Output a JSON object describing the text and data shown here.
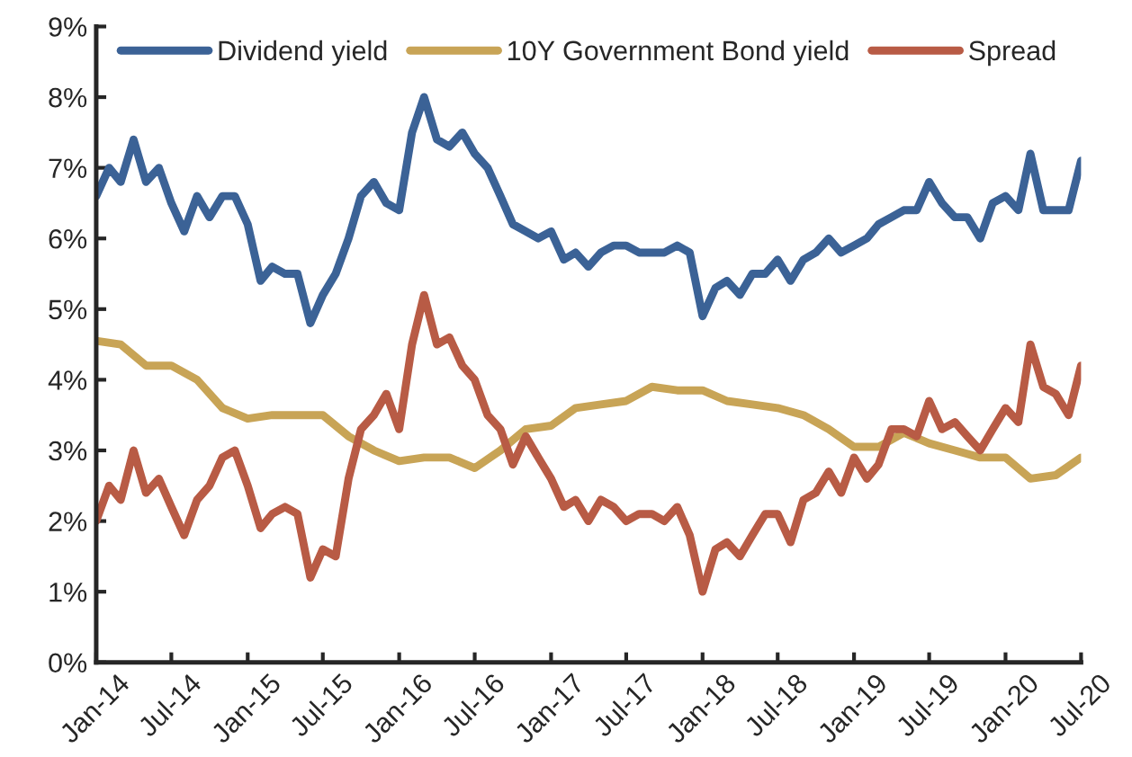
{
  "chart_data": {
    "type": "line",
    "xlim": [
      "2014-01",
      "2020-07"
    ],
    "xticks": [
      {
        "value": "2014-01",
        "label": "Jan-14"
      },
      {
        "value": "2014-07",
        "label": "Jul-14"
      },
      {
        "value": "2015-01",
        "label": "Jan-15"
      },
      {
        "value": "2015-07",
        "label": "Jul-15"
      },
      {
        "value": "2016-01",
        "label": "Jan-16"
      },
      {
        "value": "2016-07",
        "label": "Jul-16"
      },
      {
        "value": "2017-01",
        "label": "Jan-17"
      },
      {
        "value": "2017-07",
        "label": "Jul-17"
      },
      {
        "value": "2018-01",
        "label": "Jan-18"
      },
      {
        "value": "2018-07",
        "label": "Jul-18"
      },
      {
        "value": "2019-01",
        "label": "Jan-19"
      },
      {
        "value": "2019-07",
        "label": "Jul-19"
      },
      {
        "value": "2020-01",
        "label": "Jan-20"
      },
      {
        "value": "2020-07",
        "label": "Jul-20"
      }
    ],
    "ylim": [
      0,
      9
    ],
    "yticks": [
      {
        "value": 0,
        "label": "0%"
      },
      {
        "value": 1,
        "label": "1%"
      },
      {
        "value": 2,
        "label": "2%"
      },
      {
        "value": 3,
        "label": "3%"
      },
      {
        "value": 4,
        "label": "4%"
      },
      {
        "value": 5,
        "label": "5%"
      },
      {
        "value": 6,
        "label": "6%"
      },
      {
        "value": 7,
        "label": "7%"
      },
      {
        "value": 8,
        "label": "8%"
      },
      {
        "value": 9,
        "label": "9%"
      }
    ],
    "grid": false,
    "legend": "top",
    "marker": "none",
    "line_style": "solid",
    "x": [
      "2014-01",
      "2014-02",
      "2014-03",
      "2014-04",
      "2014-05",
      "2014-06",
      "2014-07",
      "2014-08",
      "2014-09",
      "2014-10",
      "2014-11",
      "2014-12",
      "2015-01",
      "2015-02",
      "2015-03",
      "2015-04",
      "2015-05",
      "2015-06",
      "2015-07",
      "2015-08",
      "2015-09",
      "2015-10",
      "2015-11",
      "2015-12",
      "2016-01",
      "2016-02",
      "2016-03",
      "2016-04",
      "2016-05",
      "2016-06",
      "2016-07",
      "2016-08",
      "2016-09",
      "2016-10",
      "2016-11",
      "2016-12",
      "2017-01",
      "2017-02",
      "2017-03",
      "2017-04",
      "2017-05",
      "2017-06",
      "2017-07",
      "2017-08",
      "2017-09",
      "2017-10",
      "2017-11",
      "2017-12",
      "2018-01",
      "2018-02",
      "2018-03",
      "2018-04",
      "2018-05",
      "2018-06",
      "2018-07",
      "2018-08",
      "2018-09",
      "2018-10",
      "2018-11",
      "2018-12",
      "2019-01",
      "2019-02",
      "2019-03",
      "2019-04",
      "2019-05",
      "2019-06",
      "2019-07",
      "2019-08",
      "2019-09",
      "2019-10",
      "2019-11",
      "2019-12",
      "2020-01",
      "2020-02",
      "2020-03",
      "2020-04",
      "2020-05",
      "2020-06",
      "2020-07"
    ],
    "series": [
      {
        "name": "Dividend yield",
        "color": "#3b6296",
        "values": [
          6.6,
          7.0,
          6.8,
          7.4,
          6.8,
          7.0,
          6.5,
          6.1,
          6.6,
          6.3,
          6.6,
          6.6,
          6.2,
          5.4,
          5.6,
          5.5,
          5.5,
          4.8,
          5.2,
          5.5,
          6.0,
          6.6,
          6.8,
          6.5,
          6.4,
          7.5,
          8.0,
          7.4,
          7.3,
          7.5,
          7.2,
          7.0,
          6.6,
          6.2,
          6.1,
          6.0,
          6.1,
          5.7,
          5.8,
          5.6,
          5.8,
          5.9,
          5.9,
          5.8,
          5.8,
          5.8,
          5.9,
          5.8,
          4.9,
          5.3,
          5.4,
          5.2,
          5.5,
          5.5,
          5.7,
          5.4,
          5.7,
          5.8,
          6.0,
          5.8,
          5.9,
          6.0,
          6.2,
          6.3,
          6.4,
          6.4,
          6.8,
          6.5,
          6.3,
          6.3,
          6.0,
          6.5,
          6.6,
          6.4,
          7.2,
          6.4,
          6.4,
          6.4,
          7.1
        ]
      },
      {
        "name": "10Y Government Bond yield",
        "color": "#c8a456",
        "x": [
          "2014-01",
          "2014-03",
          "2014-05",
          "2014-07",
          "2014-09",
          "2014-11",
          "2015-01",
          "2015-03",
          "2015-05",
          "2015-07",
          "2015-09",
          "2015-11",
          "2016-01",
          "2016-03",
          "2016-05",
          "2016-07",
          "2016-09",
          "2016-11",
          "2017-01",
          "2017-03",
          "2017-05",
          "2017-07",
          "2017-09",
          "2017-11",
          "2018-01",
          "2018-03",
          "2018-05",
          "2018-07",
          "2018-09",
          "2018-11",
          "2019-01",
          "2019-03",
          "2019-05",
          "2019-07",
          "2019-09",
          "2019-11",
          "2020-01",
          "2020-03",
          "2020-05",
          "2020-07"
        ],
        "values": [
          4.55,
          4.5,
          4.2,
          4.2,
          4.0,
          3.6,
          3.45,
          3.5,
          3.5,
          3.5,
          3.2,
          3.0,
          2.85,
          2.9,
          2.9,
          2.75,
          3.0,
          3.3,
          3.35,
          3.6,
          3.65,
          3.7,
          3.9,
          3.85,
          3.85,
          3.7,
          3.65,
          3.6,
          3.5,
          3.3,
          3.05,
          3.05,
          3.25,
          3.1,
          3.0,
          2.9,
          2.9,
          2.6,
          2.65,
          2.9
        ]
      },
      {
        "name": "Spread",
        "color": "#b85b45",
        "values": [
          2.0,
          2.5,
          2.3,
          3.0,
          2.4,
          2.6,
          2.2,
          1.8,
          2.3,
          2.5,
          2.9,
          3.0,
          2.5,
          1.9,
          2.1,
          2.2,
          2.1,
          1.2,
          1.6,
          1.5,
          2.6,
          3.3,
          3.5,
          3.8,
          3.3,
          4.5,
          5.2,
          4.5,
          4.6,
          4.2,
          4.0,
          3.5,
          3.3,
          2.8,
          3.2,
          2.9,
          2.6,
          2.2,
          2.3,
          2.0,
          2.3,
          2.2,
          2.0,
          2.1,
          2.1,
          2.0,
          2.2,
          1.8,
          1.0,
          1.6,
          1.7,
          1.5,
          1.8,
          2.1,
          2.1,
          1.7,
          2.3,
          2.4,
          2.7,
          2.4,
          2.9,
          2.6,
          2.8,
          3.3,
          3.3,
          3.2,
          3.7,
          3.3,
          3.4,
          3.2,
          3.0,
          3.3,
          3.6,
          3.4,
          4.5,
          3.9,
          3.8,
          3.5,
          4.2
        ]
      }
    ]
  }
}
